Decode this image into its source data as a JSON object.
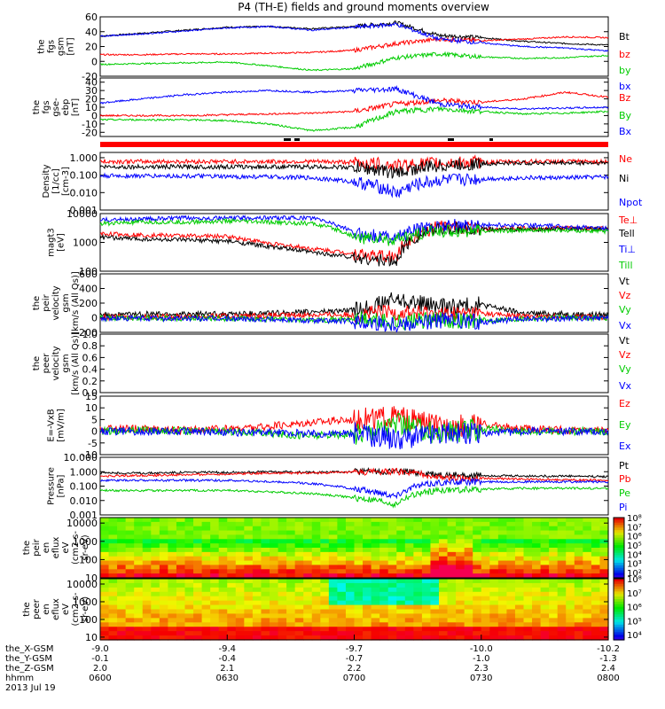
{
  "title": "P4 (TH-E) fields and ground moments overview",
  "x_tick_labels": [
    "0600",
    "0630",
    "0700",
    "0730",
    "0800"
  ],
  "orbit": {
    "row_labels": [
      "the_X-GSM",
      "the_Y-GSM",
      "the_Z-GSM",
      "hhmm"
    ],
    "date_label": "2013 Jul 19",
    "X": [
      "-9.0",
      "-9.4",
      "-9.7",
      "-10.0",
      "-10.2"
    ],
    "Y": [
      "-0.1",
      "-0.4",
      "-0.7",
      "-1.0",
      "-1.3"
    ],
    "Z": [
      "2.0",
      "2.1",
      "2.2",
      "2.3",
      "2.4"
    ]
  },
  "colors": {
    "black": "#000000",
    "red": "#ff0000",
    "green": "#00cc00",
    "blue": "#0000ff"
  },
  "chart_data": [
    {
      "type": "line",
      "id": "fgs_gsm",
      "ylabel": [
        "the",
        "fgs",
        "gsm",
        "[nT]"
      ],
      "ylim": [
        -20,
        60
      ],
      "yscale": "linear",
      "yticks": [
        -20,
        0,
        20,
        40,
        60
      ],
      "ytick_labels": [
        "-20",
        "0",
        "20",
        "40",
        "60"
      ],
      "x": [
        "06:00",
        "06:10",
        "06:20",
        "06:30",
        "06:40",
        "06:50",
        "07:00",
        "07:10",
        "07:20",
        "07:30",
        "07:40",
        "07:50",
        "08:00"
      ],
      "series": [
        {
          "name": "Bt",
          "color": "black",
          "values": [
            34,
            38,
            42,
            46,
            47,
            44,
            47,
            52,
            35,
            32,
            27,
            24,
            22
          ]
        },
        {
          "name": "bz",
          "color": "red",
          "values": [
            9,
            9,
            10,
            10,
            11,
            12,
            15,
            24,
            30,
            28,
            30,
            33,
            32
          ]
        },
        {
          "name": "by",
          "color": "green",
          "values": [
            -4,
            -3,
            -2,
            -1,
            -6,
            -12,
            -10,
            5,
            10,
            6,
            4,
            5,
            8
          ]
        },
        {
          "name": "bx",
          "color": "blue",
          "values": [
            34,
            37,
            41,
            45,
            47,
            42,
            46,
            50,
            30,
            25,
            20,
            18,
            14
          ]
        }
      ]
    },
    {
      "type": "line",
      "id": "fgs_gse",
      "ylabel": [
        "the",
        "fgs",
        "gse-",
        "ebp",
        "[nT]"
      ],
      "ylim": [
        -25,
        45
      ],
      "yscale": "linear",
      "yticks": [
        -20,
        -10,
        0,
        10,
        20,
        30,
        40
      ],
      "ytick_labels": [
        "-20",
        "-10",
        "0",
        "10",
        "20",
        "30",
        "40"
      ],
      "x": [
        "06:00",
        "06:10",
        "06:20",
        "06:30",
        "06:40",
        "06:50",
        "07:00",
        "07:10",
        "07:20",
        "07:30",
        "07:40",
        "07:50",
        "08:00"
      ],
      "series": [
        {
          "name": "Bz",
          "color": "red",
          "values": [
            0,
            0,
            0,
            1,
            2,
            3,
            5,
            14,
            18,
            16,
            20,
            28,
            22
          ]
        },
        {
          "name": "By",
          "color": "green",
          "values": [
            -5,
            -5,
            -5,
            -6,
            -10,
            -18,
            -14,
            5,
            8,
            5,
            2,
            3,
            5
          ]
        },
        {
          "name": "Bx",
          "color": "blue",
          "values": [
            15,
            20,
            25,
            28,
            30,
            28,
            30,
            32,
            14,
            10,
            8,
            9,
            10
          ]
        }
      ]
    },
    {
      "type": "line",
      "id": "density",
      "ylabel": [
        "Density",
        "[1/cc]",
        "[cm-3]"
      ],
      "ylim": [
        0.001,
        2
      ],
      "yscale": "log",
      "yticks": [
        0.001,
        0.01,
        0.1,
        1
      ],
      "ytick_labels": [
        "0.001",
        "0.010",
        "0.100",
        "1.000"
      ],
      "x": [
        "06:00",
        "06:10",
        "06:20",
        "06:30",
        "06:40",
        "06:50",
        "07:00",
        "07:10",
        "07:20",
        "07:30",
        "07:40",
        "07:50",
        "08:00"
      ],
      "series": [
        {
          "name": "Ne",
          "color": "red",
          "values": [
            0.6,
            0.6,
            0.6,
            0.6,
            0.6,
            0.6,
            0.55,
            0.35,
            0.5,
            0.55,
            0.6,
            0.6,
            0.6
          ]
        },
        {
          "name": "Ni",
          "color": "black",
          "values": [
            0.3,
            0.3,
            0.3,
            0.3,
            0.3,
            0.3,
            0.28,
            0.13,
            0.35,
            0.45,
            0.5,
            0.5,
            0.5
          ]
        },
        {
          "name": "Npot",
          "color": "blue",
          "values": [
            0.09,
            0.09,
            0.09,
            0.08,
            0.08,
            0.07,
            0.04,
            0.008,
            0.05,
            0.06,
            0.07,
            0.07,
            0.08
          ]
        }
      ]
    },
    {
      "type": "line",
      "id": "magt3",
      "ylabel": [
        "magt3",
        "[eV]"
      ],
      "ylim": [
        100,
        10000
      ],
      "yscale": "log",
      "yticks": [
        100,
        1000,
        10000
      ],
      "ytick_labels": [
        "100",
        "1000",
        "10000"
      ],
      "x": [
        "06:00",
        "06:10",
        "06:20",
        "06:30",
        "06:40",
        "06:50",
        "07:00",
        "07:10",
        "07:20",
        "07:30",
        "07:40",
        "07:50",
        "08:00"
      ],
      "series": [
        {
          "name": "Te⊥",
          "color": "red",
          "values": [
            2000,
            1800,
            1700,
            1600,
            900,
            600,
            400,
            300,
            3500,
            3000,
            3000,
            3200,
            3000
          ]
        },
        {
          "name": "Tell",
          "color": "black",
          "values": [
            1500,
            1300,
            1200,
            1100,
            700,
            450,
            300,
            200,
            3000,
            2800,
            2800,
            2900,
            2800
          ]
        },
        {
          "name": "Ti⊥",
          "color": "blue",
          "values": [
            6000,
            6500,
            7000,
            7000,
            7200,
            7000,
            2000,
            1500,
            4000,
            4000,
            4000,
            3500,
            3000
          ]
        },
        {
          "name": "Till",
          "color": "green",
          "values": [
            4500,
            5000,
            5000,
            5500,
            5000,
            4500,
            1500,
            1200,
            2500,
            2500,
            2600,
            2600,
            2400
          ]
        }
      ]
    },
    {
      "type": "line",
      "id": "peir_velocity",
      "ylabel": [
        "the",
        "peir",
        "velocity",
        "gsm",
        "[km/s (All Qs)]"
      ],
      "ylim": [
        -200,
        600
      ],
      "yscale": "linear",
      "yticks": [
        -200,
        0,
        200,
        400,
        600
      ],
      "ytick_labels": [
        "-200",
        "0",
        "200",
        "400",
        "600"
      ],
      "x": [
        "06:00",
        "06:10",
        "06:20",
        "06:30",
        "06:40",
        "06:50",
        "07:00",
        "07:10",
        "07:20",
        "07:30",
        "07:40",
        "07:50",
        "08:00"
      ],
      "series": [
        {
          "name": "Vt",
          "color": "black",
          "values": [
            40,
            50,
            45,
            50,
            60,
            80,
            100,
            250,
            150,
            180,
            60,
            50,
            40
          ]
        },
        {
          "name": "Vz",
          "color": "red",
          "values": [
            10,
            10,
            15,
            20,
            30,
            40,
            40,
            80,
            50,
            60,
            20,
            10,
            10
          ]
        },
        {
          "name": "Vy",
          "color": "green",
          "values": [
            0,
            -5,
            -5,
            -10,
            -20,
            -30,
            -20,
            -60,
            -30,
            -40,
            -10,
            0,
            0
          ]
        },
        {
          "name": "Vx",
          "color": "blue",
          "values": [
            -10,
            -10,
            -10,
            -15,
            -20,
            -40,
            -50,
            -80,
            -40,
            -60,
            -20,
            -10,
            -10
          ]
        }
      ]
    },
    {
      "type": "line",
      "id": "peer_velocity",
      "ylabel": [
        "the",
        "peer",
        "velocity",
        "gsm",
        "[km/s (All Qs)]"
      ],
      "ylim": [
        0,
        1
      ],
      "yscale": "linear",
      "yticks": [
        0,
        0.2,
        0.4,
        0.6,
        0.8,
        1.0
      ],
      "ytick_labels": [
        "0.0",
        "0.2",
        "0.4",
        "0.6",
        "0.8",
        "1.0"
      ],
      "x": [],
      "series": [
        {
          "name": "Vt",
          "color": "black",
          "values": []
        },
        {
          "name": "Vz",
          "color": "red",
          "values": []
        },
        {
          "name": "Vy",
          "color": "green",
          "values": []
        },
        {
          "name": "Vx",
          "color": "blue",
          "values": []
        }
      ]
    },
    {
      "type": "line",
      "id": "efield",
      "ylabel": [
        "E=-VxB",
        "[mV/m]"
      ],
      "ylim": [
        -10,
        15
      ],
      "yscale": "linear",
      "yticks": [
        -10,
        -5,
        0,
        5,
        10,
        15
      ],
      "ytick_labels": [
        "-10",
        "-5",
        "0",
        "5",
        "10",
        "15"
      ],
      "x": [
        "06:00",
        "06:10",
        "06:20",
        "06:30",
        "06:40",
        "06:50",
        "07:00",
        "07:10",
        "07:20",
        "07:30",
        "07:40",
        "07:50",
        "08:00"
      ],
      "series": [
        {
          "name": "Ez",
          "color": "red",
          "values": [
            1,
            1,
            0.5,
            1,
            2,
            4,
            5,
            6,
            2,
            3,
            1,
            0.5,
            0.5
          ]
        },
        {
          "name": "Ey",
          "color": "green",
          "values": [
            0,
            0.5,
            0,
            0,
            -1,
            -2,
            -1,
            3,
            -1,
            1,
            0,
            0,
            0
          ]
        },
        {
          "name": "Ex",
          "color": "blue",
          "values": [
            0,
            0,
            0,
            -0.5,
            -0.5,
            -1,
            -1,
            -3,
            -1,
            -1,
            0,
            0,
            0
          ]
        }
      ]
    },
    {
      "type": "line",
      "id": "pressure",
      "ylabel": [
        "Pressure",
        "[nPa]"
      ],
      "ylim": [
        0.001,
        10
      ],
      "yscale": "log",
      "yticks": [
        0.001,
        0.01,
        0.1,
        1,
        10
      ],
      "ytick_labels": [
        "0.001",
        "0.010",
        "0.100",
        "1.000",
        "10.000"
      ],
      "x": [
        "06:00",
        "06:10",
        "06:20",
        "06:30",
        "06:40",
        "06:50",
        "07:00",
        "07:10",
        "07:20",
        "07:30",
        "07:40",
        "07:50",
        "08:00"
      ],
      "series": [
        {
          "name": "Pt",
          "color": "black",
          "values": [
            0.8,
            0.8,
            0.9,
            0.9,
            1.0,
            0.9,
            1.0,
            1.1,
            0.6,
            0.55,
            0.5,
            0.5,
            0.45
          ]
        },
        {
          "name": "Pb",
          "color": "red",
          "values": [
            0.5,
            0.55,
            0.6,
            0.7,
            0.8,
            0.8,
            0.9,
            1.0,
            0.4,
            0.35,
            0.3,
            0.28,
            0.25
          ]
        },
        {
          "name": "Pe",
          "color": "green",
          "values": [
            0.05,
            0.05,
            0.05,
            0.05,
            0.04,
            0.03,
            0.015,
            0.005,
            0.05,
            0.06,
            0.07,
            0.07,
            0.07
          ]
        },
        {
          "name": "Pi",
          "color": "blue",
          "values": [
            0.25,
            0.25,
            0.25,
            0.25,
            0.2,
            0.15,
            0.06,
            0.02,
            0.18,
            0.2,
            0.2,
            0.2,
            0.2
          ]
        }
      ]
    },
    {
      "type": "heatmap",
      "id": "peir_eflux",
      "ylabel": [
        "the",
        "peir",
        "en",
        "eflux",
        "eV",
        "(cm2-s-",
        "sr-eV)"
      ],
      "ylim": [
        10,
        20000
      ],
      "yscale": "log",
      "yticks": [
        10,
        100,
        1000,
        10000
      ],
      "ytick_labels": [
        "10",
        "100",
        "1000",
        "10000"
      ],
      "colorbar_range": [
        100,
        100000000
      ],
      "colorbar_labels": [
        "10²",
        "10³",
        "10⁴",
        "10⁵",
        "10⁶",
        "10⁷",
        "10⁸"
      ]
    },
    {
      "type": "heatmap",
      "id": "peer_eflux",
      "ylabel": [
        "the",
        "peer",
        "en",
        "eflux",
        "eV",
        "(cm2-s-",
        "sr-eV)"
      ],
      "ylim": [
        7,
        20000
      ],
      "yscale": "log",
      "yticks": [
        10,
        100,
        1000,
        10000
      ],
      "ytick_labels": [
        "10",
        "100",
        "1000",
        "10000"
      ],
      "colorbar_range": [
        1000,
        100000000
      ],
      "colorbar_labels": [
        "10⁴",
        "10⁵",
        "10⁶",
        "10⁷",
        "10⁸"
      ]
    }
  ]
}
